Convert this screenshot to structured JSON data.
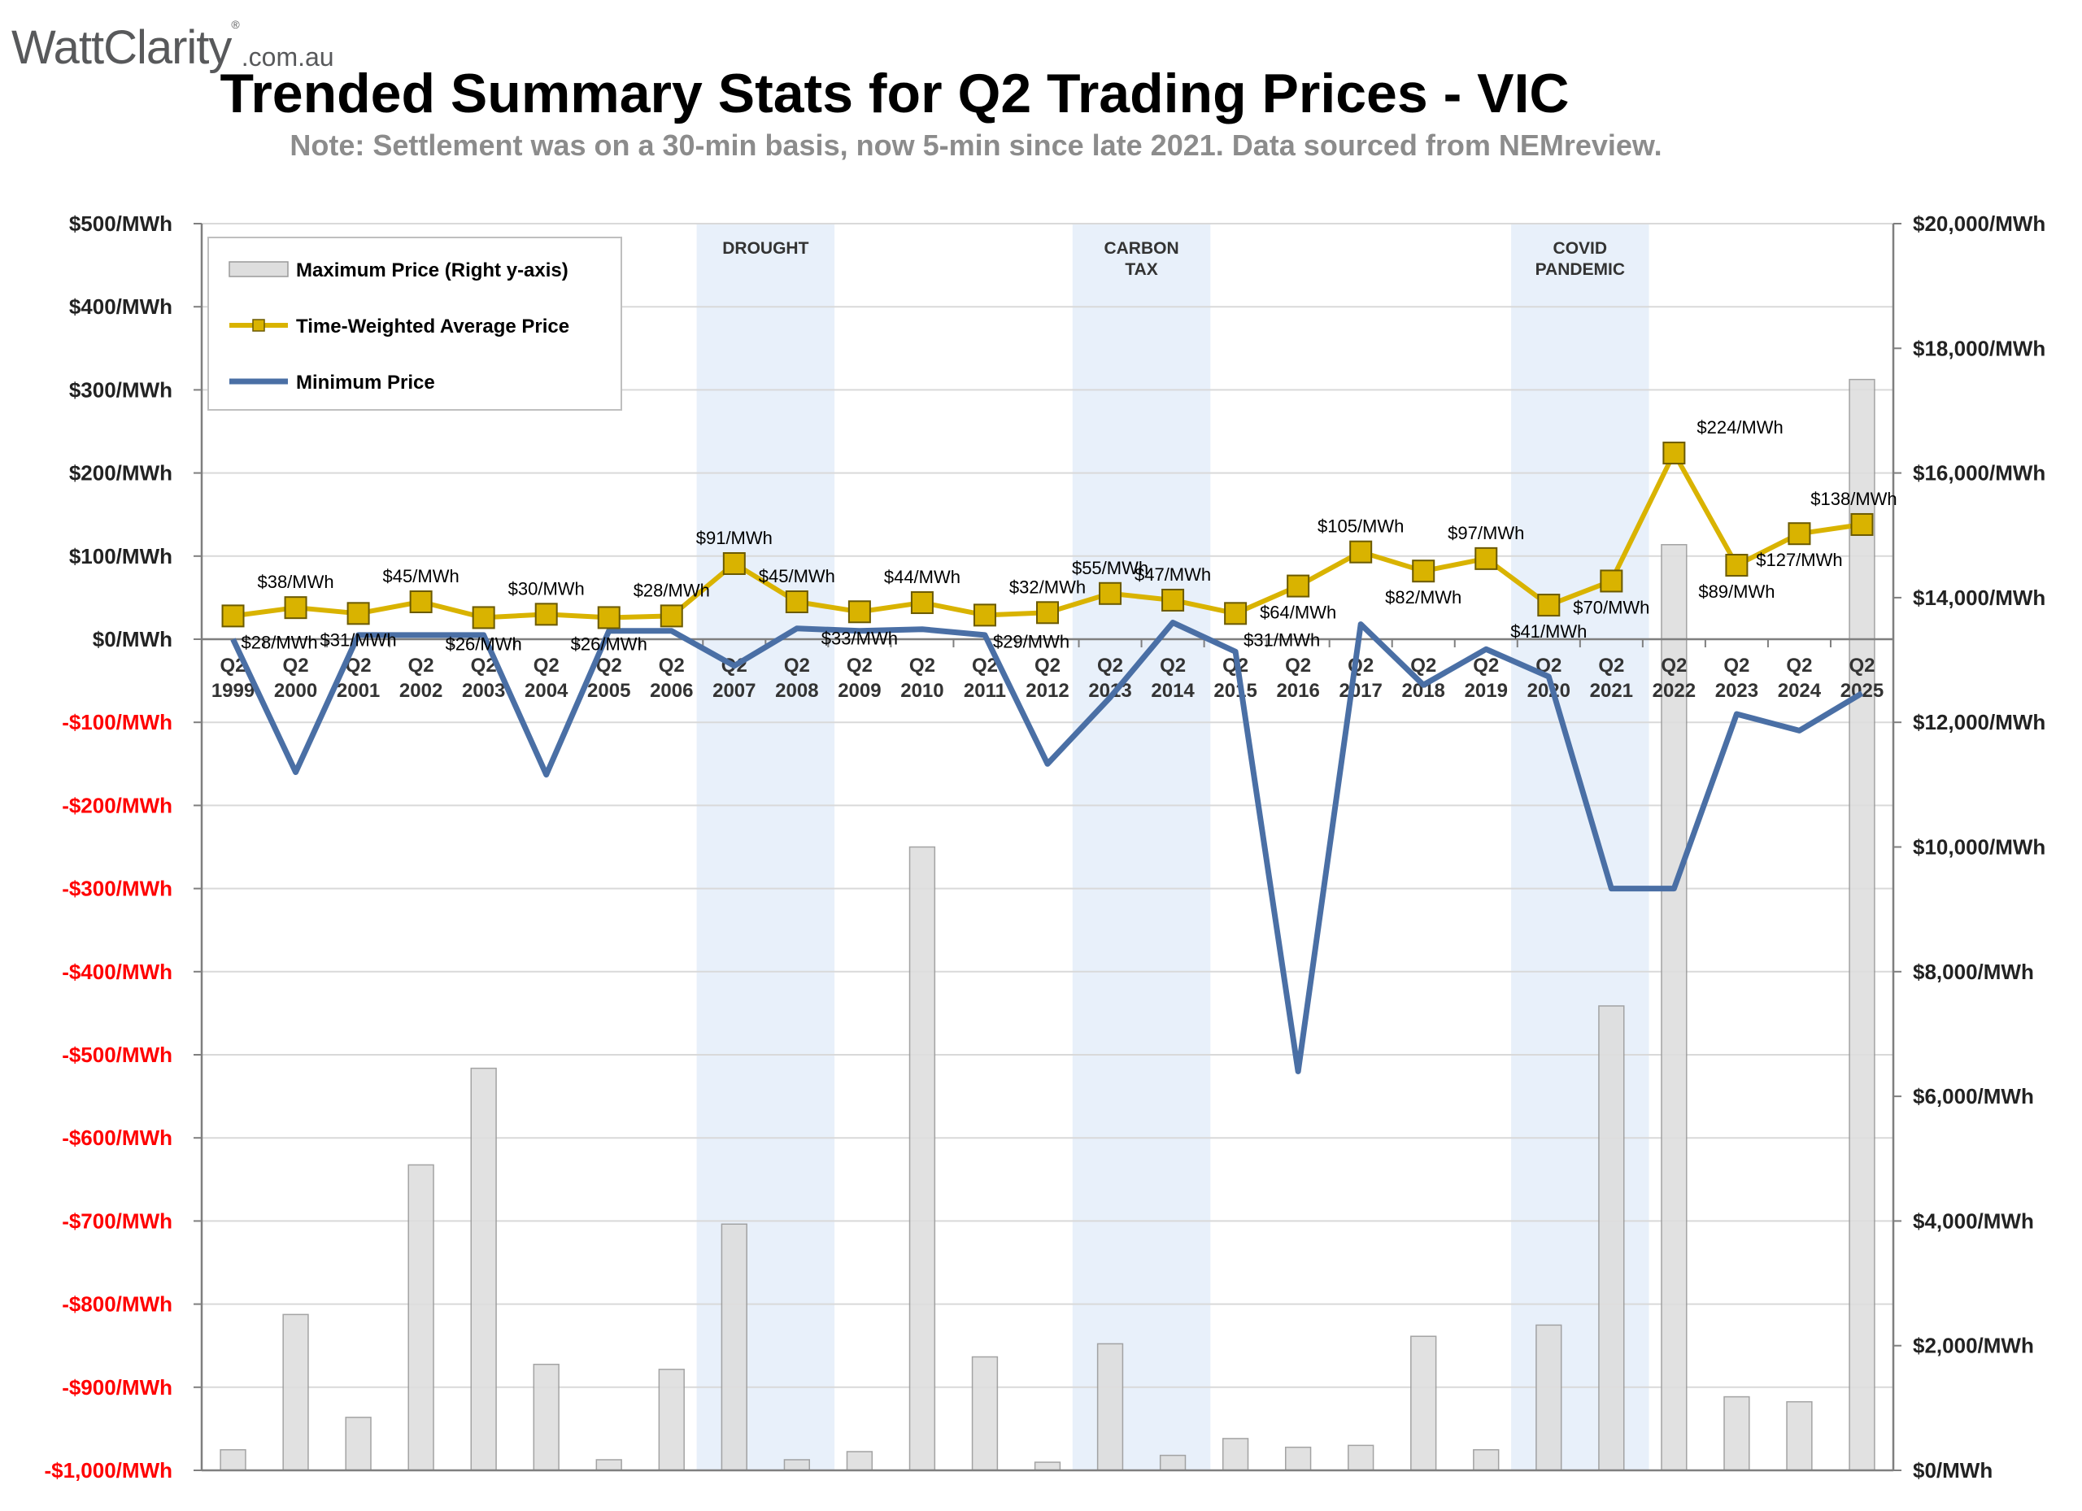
{
  "logo": {
    "brand": "WattClarity",
    "reg": "®",
    "tld": ".com.au"
  },
  "title": "Trended Summary Stats for Q2 Trading Prices - VIC",
  "subtitle": "Note: Settlement was on a 30-min basis, now 5-min since late 2021. Data sourced from NEMreview.",
  "colors": {
    "avg_line": "#d9b300",
    "avg_marker": "#d9b300",
    "min_line": "#4a6fa5",
    "max_bar": "#dedede",
    "band": "#dce8f7",
    "negative_tick": "#ff0000",
    "positive_tick": "#222222"
  },
  "chart_data": {
    "type": "bar+line",
    "categories": [
      "Q2 1999",
      "Q2 2000",
      "Q2 2001",
      "Q2 2002",
      "Q2 2003",
      "Q2 2004",
      "Q2 2005",
      "Q2 2006",
      "Q2 2007",
      "Q2 2008",
      "Q2 2009",
      "Q2 2010",
      "Q2 2011",
      "Q2 2012",
      "Q2 2013",
      "Q2 2014",
      "Q2 2015",
      "Q2 2016",
      "Q2 2017",
      "Q2 2018",
      "Q2 2019",
      "Q2 2020",
      "Q2 2021",
      "Q2 2022",
      "Q2 2023",
      "Q2 2024",
      "Q2 2025"
    ],
    "category_lines": [
      [
        "Q2",
        "1999"
      ],
      [
        "Q2",
        "2000"
      ],
      [
        "Q2",
        "2001"
      ],
      [
        "Q2",
        "2002"
      ],
      [
        "Q2",
        "2003"
      ],
      [
        "Q2",
        "2004"
      ],
      [
        "Q2",
        "2005"
      ],
      [
        "Q2",
        "2006"
      ],
      [
        "Q2",
        "2007"
      ],
      [
        "Q2",
        "2008"
      ],
      [
        "Q2",
        "2009"
      ],
      [
        "Q2",
        "2010"
      ],
      [
        "Q2",
        "2011"
      ],
      [
        "Q2",
        "2012"
      ],
      [
        "Q2",
        "2013"
      ],
      [
        "Q2",
        "2014"
      ],
      [
        "Q2",
        "2015"
      ],
      [
        "Q2",
        "2016"
      ],
      [
        "Q2",
        "2017"
      ],
      [
        "Q2",
        "2018"
      ],
      [
        "Q2",
        "2019"
      ],
      [
        "Q2",
        "2020"
      ],
      [
        "Q2",
        "2021"
      ],
      [
        "Q2",
        "2022"
      ],
      [
        "Q2",
        "2023"
      ],
      [
        "Q2",
        "2024"
      ],
      [
        "Q2",
        "2025"
      ]
    ],
    "left_axis": {
      "ylim": [
        -1000,
        500
      ],
      "ticks": [
        500,
        400,
        300,
        200,
        100,
        0,
        -100,
        -200,
        -300,
        -400,
        -500,
        -600,
        -700,
        -800,
        -900,
        -1000
      ],
      "tick_labels": [
        "$500/MWh",
        "$400/MWh",
        "$300/MWh",
        "$200/MWh",
        "$100/MWh",
        "$0/MWh",
        "-$100/MWh",
        "-$200/MWh",
        "-$300/MWh",
        "-$400/MWh",
        "-$500/MWh",
        "-$600/MWh",
        "-$700/MWh",
        "-$800/MWh",
        "-$900/MWh",
        "-$1,000/MWh"
      ]
    },
    "right_axis": {
      "ylim": [
        0,
        20000
      ],
      "ticks": [
        20000,
        18000,
        16000,
        14000,
        12000,
        10000,
        8000,
        6000,
        4000,
        2000,
        0
      ],
      "tick_labels": [
        "$20,000/MWh",
        "$18,000/MWh",
        "$16,000/MWh",
        "$14,000/MWh",
        "$12,000/MWh",
        "$10,000/MWh",
        "$8,000/MWh",
        "$6,000/MWh",
        "$4,000/MWh",
        "$2,000/MWh",
        "$0/MWh"
      ]
    },
    "series": [
      {
        "name": "Maximum Price (Right y-axis)",
        "kind": "bar",
        "axis": "right",
        "values": [
          330,
          2500,
          850,
          4900,
          6450,
          1700,
          170,
          1620,
          3950,
          170,
          300,
          10000,
          1820,
          130,
          2030,
          240,
          510,
          370,
          400,
          2150,
          330,
          2330,
          7450,
          14850,
          1180,
          1100,
          17500
        ]
      },
      {
        "name": "Time-Weighted Average Price",
        "kind": "line",
        "axis": "left",
        "values": [
          28,
          38,
          31,
          45,
          26,
          30,
          26,
          28,
          91,
          45,
          33,
          44,
          29,
          32,
          55,
          47,
          31,
          64,
          105,
          82,
          97,
          41,
          70,
          224,
          89,
          127,
          138
        ],
        "labels": [
          "$28/MWh",
          "$38/MWh",
          "$31/MWh",
          "$45/MWh",
          "$26/MWh",
          "$30/MWh",
          "$26/MWh",
          "$28/MWh",
          "$91/MWh",
          "$45/MWh",
          "$33/MWh",
          "$44/MWh",
          "$29/MWh",
          "$32/MWh",
          "$55/MWh",
          "$47/MWh",
          "$31/MWh",
          "$64/MWh",
          "$105/MWh",
          "$82/MWh",
          "$97/MWh",
          "$41/MWh",
          "$70/MWh",
          "$224/MWh",
          "$89/MWh",
          "$127/MWh",
          "$138/MWh"
        ]
      },
      {
        "name": "Minimum Price",
        "kind": "line",
        "axis": "left",
        "values": [
          0,
          -160,
          5,
          5,
          5,
          -163,
          10,
          10,
          -32,
          13,
          10,
          12,
          5,
          -150,
          -70,
          20,
          -15,
          -520,
          18,
          -55,
          -12,
          -45,
          -300,
          -300,
          -90,
          -110,
          -65
        ]
      }
    ],
    "bands": [
      {
        "label_lines": [
          "DROUGHT"
        ],
        "from": "Q2 2007",
        "to": "Q2 2008"
      },
      {
        "label_lines": [
          "CARBON",
          "TAX"
        ],
        "from": "Q2 2013",
        "to": "Q2 2014"
      },
      {
        "label_lines": [
          "COVID",
          "PANDEMIC"
        ],
        "from": "Q2 2020",
        "to": "Q2 2021"
      }
    ],
    "legend": {
      "placement": "top-left",
      "items": [
        "Maximum Price (Right y-axis)",
        "Time-Weighted Average Price",
        "Minimum Price"
      ]
    },
    "grid": true
  }
}
